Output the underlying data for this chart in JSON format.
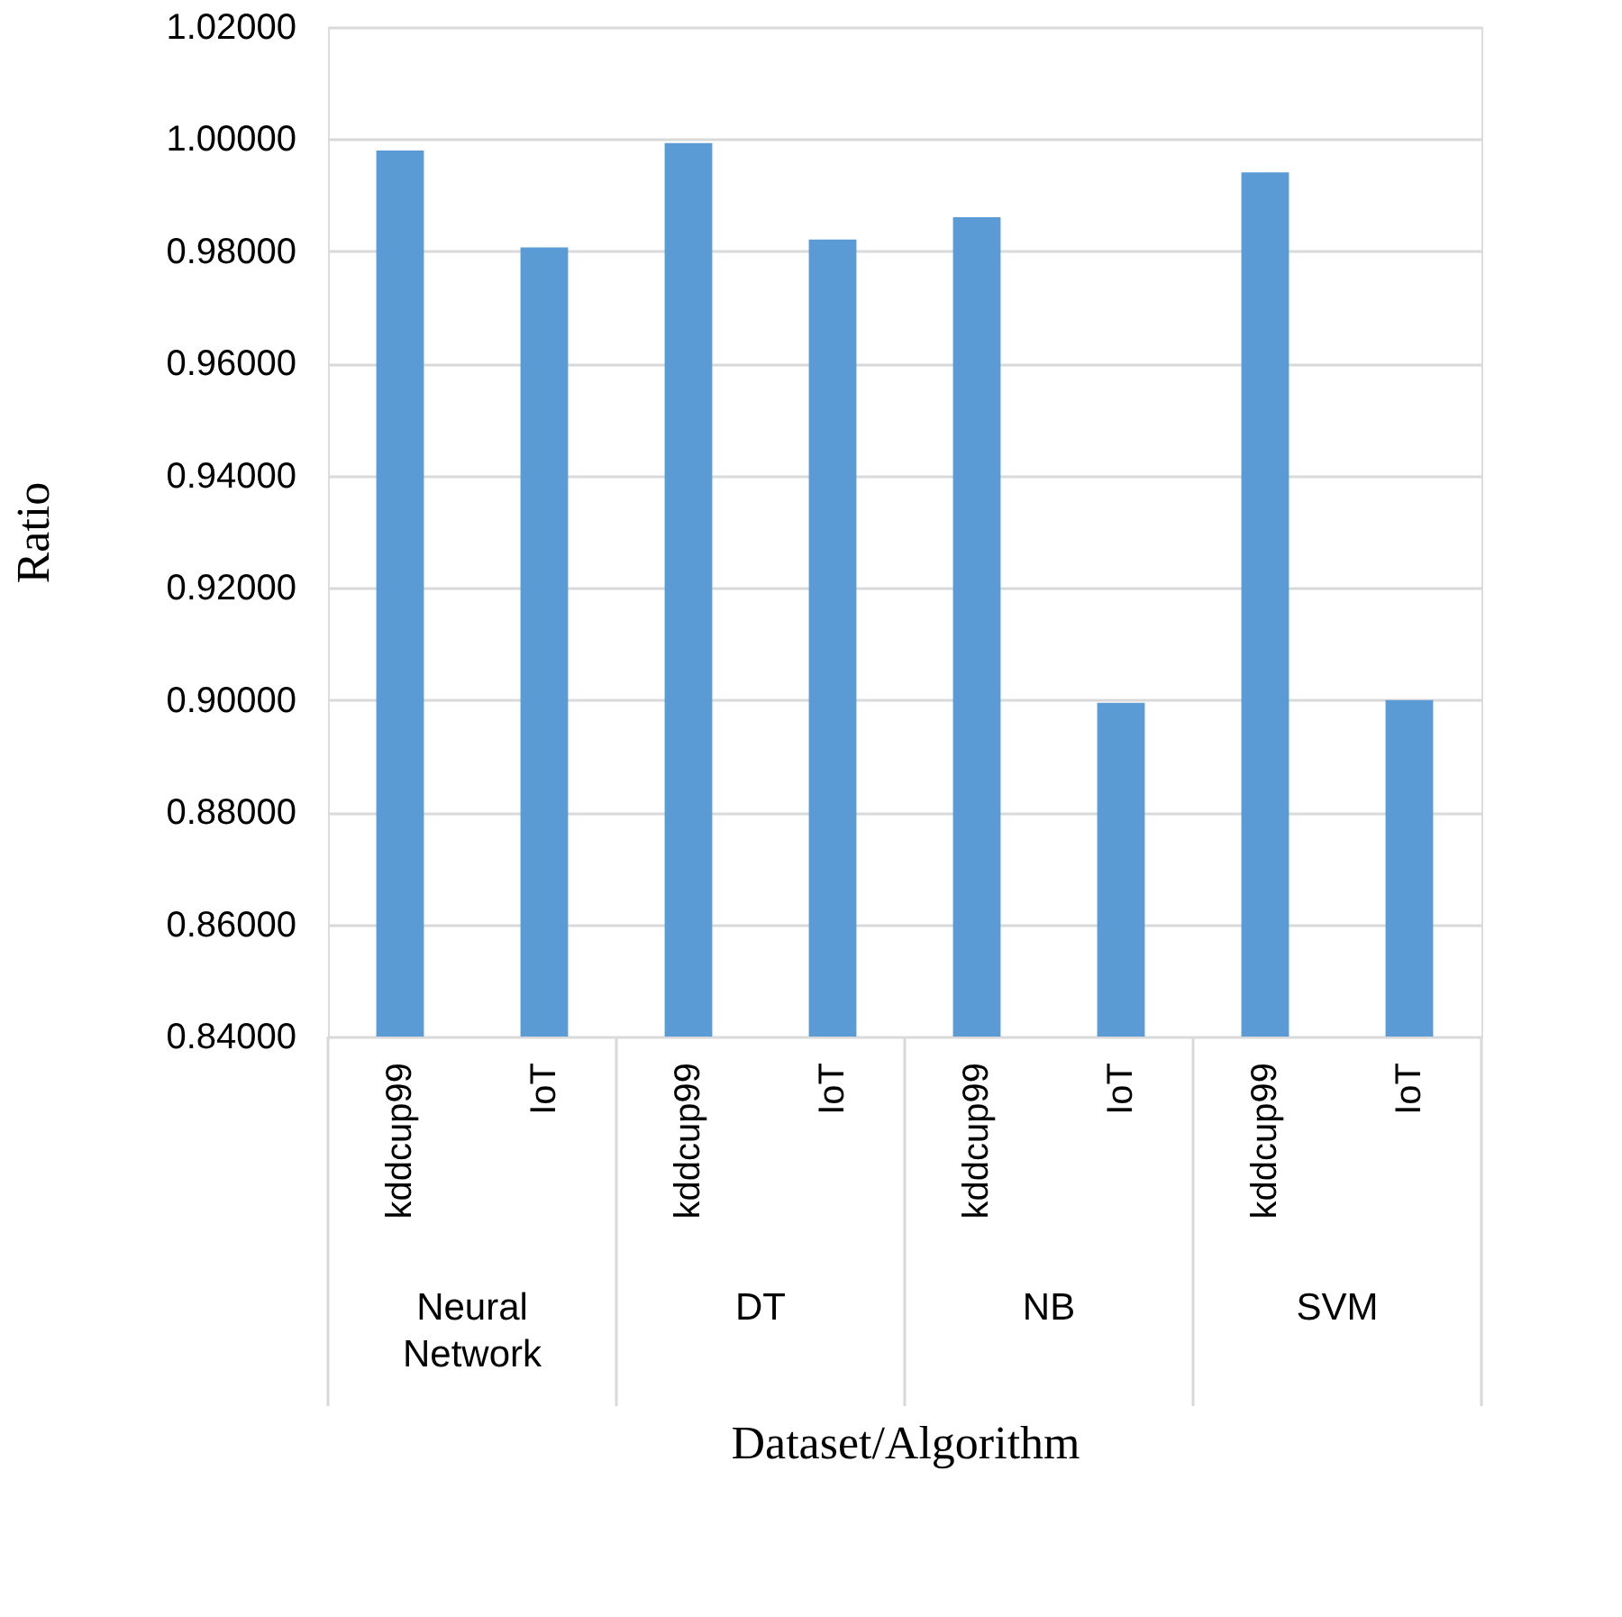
{
  "chart_data": {
    "type": "bar",
    "xlabel": "Dataset/Algorithm",
    "ylabel": "Ratio",
    "categories": [
      "kddcup99",
      "IoT",
      "kddcup99",
      "IoT",
      "kddcup99",
      "IoT",
      "kddcup99",
      "IoT"
    ],
    "values": [
      0.998,
      0.9807,
      0.9993,
      0.9821,
      0.9861,
      0.8995,
      0.9941,
      0.9
    ],
    "color": "#5b9bd5",
    "ylim": [
      0.84,
      1.02
    ],
    "yticks": [
      {
        "value": 0.84,
        "label": "0.84000"
      },
      {
        "value": 0.86,
        "label": "0.86000"
      },
      {
        "value": 0.88,
        "label": "0.88000"
      },
      {
        "value": 0.9,
        "label": "0.90000"
      },
      {
        "value": 0.92,
        "label": "0.92000"
      },
      {
        "value": 0.94,
        "label": "0.94000"
      },
      {
        "value": 0.96,
        "label": "0.96000"
      },
      {
        "value": 0.98,
        "label": "0.98000"
      },
      {
        "value": 1.0,
        "label": "1.00000"
      },
      {
        "value": 1.02,
        "label": "1.02000"
      }
    ],
    "grid": "y",
    "annotations": [
      "Neural Network",
      "DT",
      "NB",
      "SVM"
    ]
  }
}
